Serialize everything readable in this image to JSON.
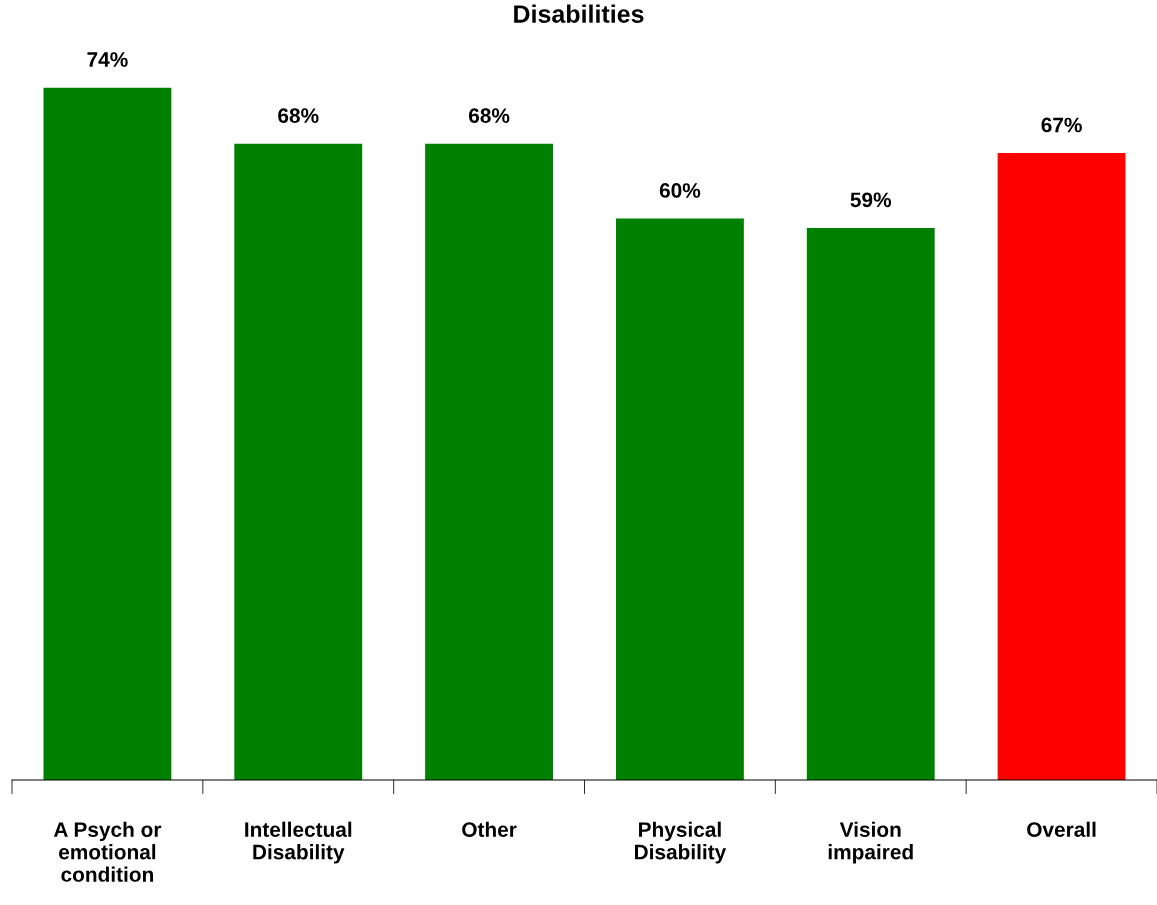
{
  "chart_data": {
    "type": "bar",
    "title": "Disabilities",
    "categories": [
      "A Psych or\nemotional\ncondition",
      "Intellectual\nDisability",
      "Other",
      "Physical\nDisability",
      "Vision\nimpaired",
      "Overall"
    ],
    "values": [
      74,
      68,
      68,
      60,
      59,
      67
    ],
    "value_labels": [
      "74%",
      "68%",
      "68%",
      "60%",
      "59%",
      "67%"
    ],
    "colors": [
      "#008000",
      "#008000",
      "#008000",
      "#008000",
      "#008000",
      "#ff0000"
    ],
    "grid": false,
    "legend": false
  }
}
